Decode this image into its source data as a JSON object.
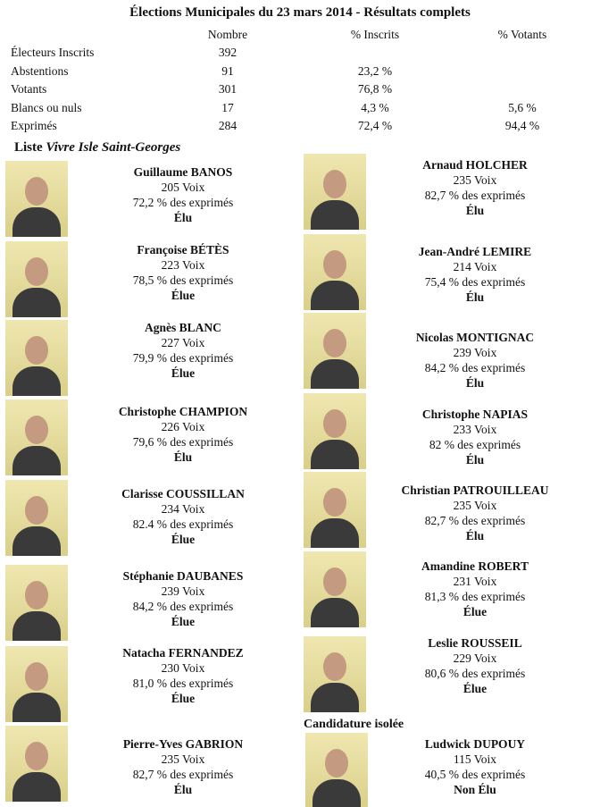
{
  "title": "Élections Municipales du 23 mars 2014 - Résultats complets",
  "table": {
    "headers": [
      "",
      "Nombre",
      "% Inscrits",
      "% Votants"
    ],
    "rows": [
      [
        "Électeurs Inscrits",
        "392",
        "",
        ""
      ],
      [
        "Abstentions",
        "91",
        "23,2 %",
        ""
      ],
      [
        "Votants",
        "301",
        "76,8 %",
        ""
      ],
      [
        "Blancs ou nuls",
        "17",
        "4,3 %",
        "5,6 %"
      ],
      [
        "Exprimés",
        "284",
        "72,4 %",
        "94,4 %"
      ]
    ]
  },
  "list": {
    "prefix": "Liste ",
    "name": "Vivre Isle Saint-Georges"
  },
  "left_candidates": [
    {
      "name": "Guillaume BANOS",
      "votes": "205 Voix",
      "pct": "72,2 % des exprimés",
      "status": "Élu"
    },
    {
      "name": "Françoise BÉTÈS",
      "votes": "223 Voix",
      "pct": "78,5 % des exprimés",
      "status": "Élue"
    },
    {
      "name": "Agnès BLANC",
      "votes": "227 Voix",
      "pct": "79,9 % des exprimés",
      "status": "Élue"
    },
    {
      "name": "Christophe CHAMPION",
      "votes": "226 Voix",
      "pct": "79,6 % des exprimés",
      "status": "Élu"
    },
    {
      "name": "Clarisse COUSSILLAN",
      "votes": "234 Voix",
      "pct": "82.4 % des exprimés",
      "status": "Élue"
    },
    {
      "name": "Stéphanie DAUBANES",
      "votes": "239 Voix",
      "pct": "84,2 % des exprimés",
      "status": "Élue"
    },
    {
      "name": "Natacha FERNANDEZ",
      "votes": "230 Voix",
      "pct": "81,0 % des exprimés",
      "status": "Élue"
    },
    {
      "name": "Pierre-Yves GABRION",
      "votes": "235 Voix",
      "pct": "82,7 % des exprimés",
      "status": "Élu"
    }
  ],
  "right_candidates": [
    {
      "name": "Arnaud HOLCHER",
      "votes": "235 Voix",
      "pct": "82,7 % des exprimés",
      "status": "Élu"
    },
    {
      "name": "Jean-André LEMIRE",
      "votes": "214 Voix",
      "pct": "75,4 % des exprimés",
      "status": "Élu"
    },
    {
      "name": "Nicolas MONTIGNAC",
      "votes": "239 Voix",
      "pct": "84,2 % des exprimés",
      "status": "Élu"
    },
    {
      "name": "Christophe NAPIAS",
      "votes": "233 Voix",
      "pct": "82 % des exprimés",
      "status": "Élu"
    },
    {
      "name": "Christian PATROUILLEAU",
      "votes": "235 Voix",
      "pct": "82,7 % des exprimés",
      "status": "Élu"
    },
    {
      "name": "Amandine ROBERT",
      "votes": "231 Voix",
      "pct": "81,3 % des exprimés",
      "status": "Élue"
    },
    {
      "name": "Leslie ROUSSEIL",
      "votes": "229 Voix",
      "pct": "80,6 % des exprimés",
      "status": "Élue"
    }
  ],
  "isolated": {
    "heading": "Candidature isolée",
    "candidate": {
      "name": "Ludwick DUPOUY",
      "votes": "115 Voix",
      "pct": "40,5 % des exprimés",
      "status": "Non Élu"
    }
  }
}
